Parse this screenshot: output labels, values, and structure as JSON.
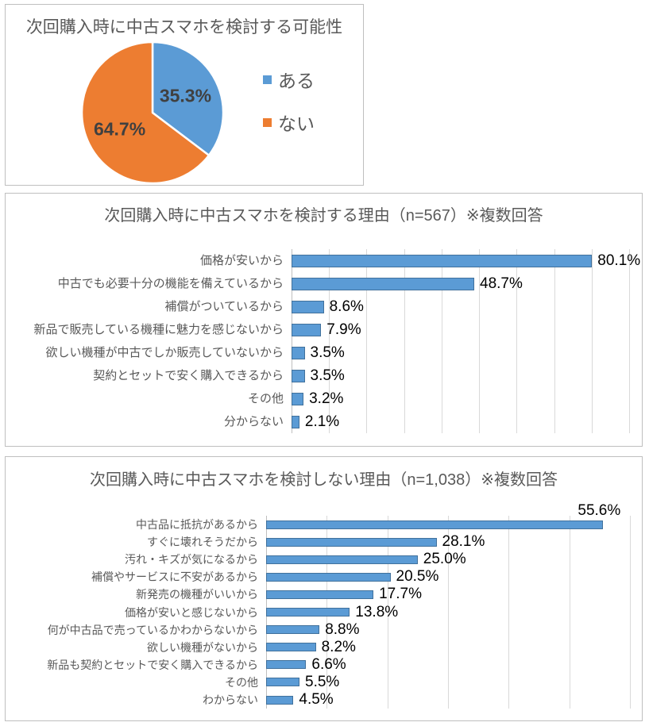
{
  "colors": {
    "blue": "#5B9BD5",
    "blue_border": "#41719C",
    "orange": "#ED7D31",
    "title_text": "#595959",
    "category_text": "#595959",
    "value_text": "#000000",
    "pie_label_text": "#404040",
    "gridline": "#D9D9D9",
    "axis_line": "#BFBFBF",
    "panel_border": "#BFBFBF"
  },
  "chart_data": [
    {
      "type": "pie",
      "title": "次回購入時に中古スマホを検討する可能性",
      "categories": [
        "ある",
        "ない"
      ],
      "values": [
        35.3,
        64.7
      ],
      "value_labels": [
        "35.3%",
        "64.7%"
      ],
      "slice_colors": [
        "#5B9BD5",
        "#ED7D31"
      ],
      "legend_position": "right",
      "start_angle_deg": 0,
      "direction": "clockwise"
    },
    {
      "type": "bar",
      "orientation": "horizontal",
      "title": "次回購入時に中古スマホを検討する理由（n=567）※複数回答",
      "categories": [
        "価格が安いから",
        "中古でも必要十分の機能を備えているから",
        "補償がついているから",
        "新品で販売している機種に魅力を感じないから",
        "欲しい機種が中古でしか販売していないから",
        "契約とセットで安く購入できるから",
        "その他",
        "分からない"
      ],
      "values": [
        80.1,
        48.7,
        8.6,
        7.9,
        3.5,
        3.5,
        3.2,
        2.1
      ],
      "value_labels": [
        "80.1%",
        "48.7%",
        "8.6%",
        "7.9%",
        "3.5%",
        "3.5%",
        "3.2%",
        "2.1%"
      ],
      "xlim": [
        0,
        90
      ],
      "gridline_interval": 10,
      "grid": true,
      "bar_color": "#5B9BD5"
    },
    {
      "type": "bar",
      "orientation": "horizontal",
      "title": "次回購入時に中古スマホを検討しない理由（n=1,038）※複数回答",
      "categories": [
        "中古品に抵抗があるから",
        "すぐに壊れそうだから",
        "汚れ・キズが気になるから",
        "補償やサービスに不安があるから",
        "新発売の機種がいいから",
        "価格が安いと感じないから",
        "何が中古品で売っているかわからないから",
        "欲しい機種がないから",
        "新品も契約とセットで安く購入できるから",
        "その他",
        "わからない"
      ],
      "values": [
        55.6,
        28.1,
        25.0,
        20.5,
        17.7,
        13.8,
        8.8,
        8.2,
        6.6,
        5.5,
        4.5
      ],
      "value_labels": [
        "55.6%",
        "28.1%",
        "25.0%",
        "20.5%",
        "17.7%",
        "13.8%",
        "8.8%",
        "8.2%",
        "6.6%",
        "5.5%",
        "4.5%"
      ],
      "xlim": [
        0,
        60
      ],
      "gridline_interval": 10,
      "grid": true,
      "first_label_above_bar": true,
      "bar_color": "#5B9BD5"
    }
  ]
}
